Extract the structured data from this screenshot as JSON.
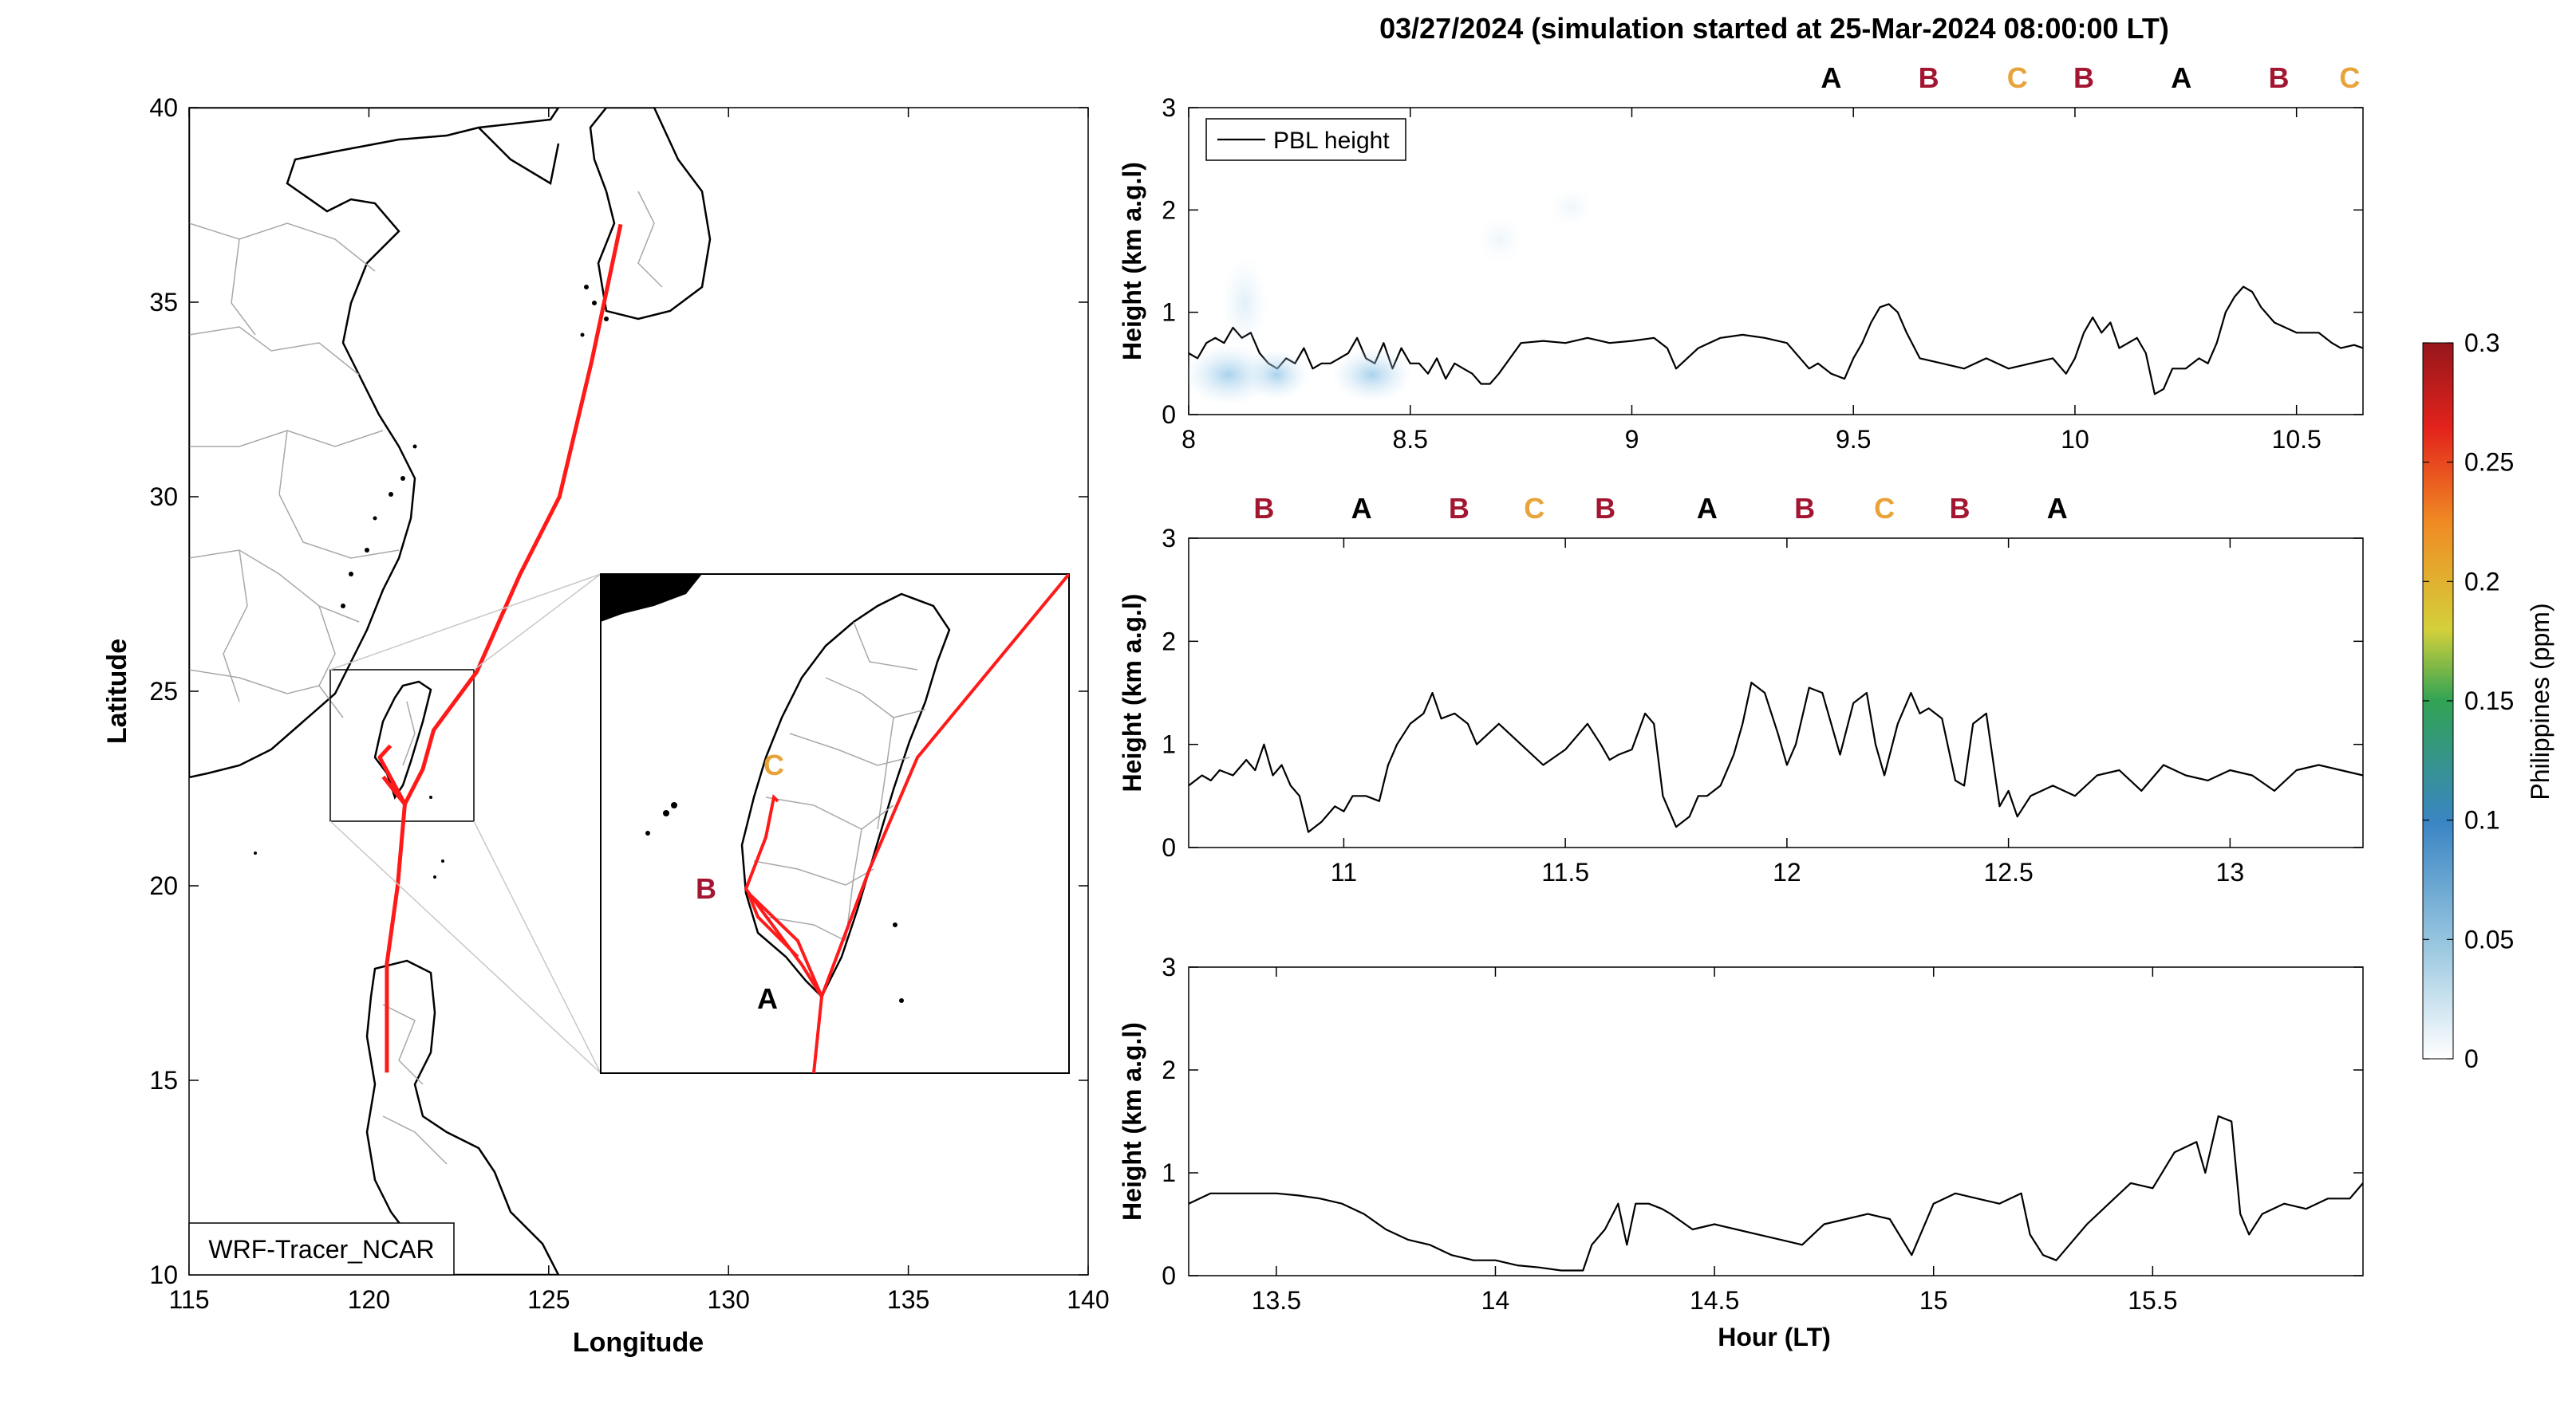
{
  "figure_title": "03/27/2024 (simulation started at 25-Mar-2024 08:00:00 LT)",
  "map": {
    "xlabel": "Longitude",
    "ylabel": "Latitude",
    "xticks": [
      "115",
      "120",
      "125",
      "130",
      "135",
      "140"
    ],
    "yticks": [
      "10",
      "15",
      "20",
      "25",
      "30",
      "35",
      "40"
    ],
    "model_label": "WRF-Tracer_NCAR",
    "inset_labels": [
      {
        "text": "C",
        "color": "#e8a33a"
      },
      {
        "text": "B",
        "color": "#a31631"
      },
      {
        "text": "A",
        "color": "#000000"
      }
    ]
  },
  "colorbar": {
    "label": "Philippines (ppm)",
    "ticks": [
      "0",
      "0.05",
      "0.1",
      "0.15",
      "0.2",
      "0.25",
      "0.3"
    ]
  },
  "panel_ylabel": "Height (km a.g.l)",
  "panel_xlabel": "Hour (LT)",
  "legend_label": "PBL height",
  "letter_colors": {
    "A": "#000000",
    "B": "#a31631",
    "C": "#e8a33a"
  },
  "chart_data": [
    {
      "type": "line",
      "xlim": [
        8,
        10.65
      ],
      "ylim": [
        0,
        3
      ],
      "xticks": [
        "8",
        "8.5",
        "9",
        "9.5",
        "10",
        "10.5"
      ],
      "yticks": [
        "0",
        "1",
        "2",
        "3"
      ],
      "top_letters": [
        {
          "x": 9.45,
          "letter": "A"
        },
        {
          "x": 9.67,
          "letter": "B"
        },
        {
          "x": 9.87,
          "letter": "C"
        },
        {
          "x": 10.02,
          "letter": "B"
        },
        {
          "x": 10.24,
          "letter": "A"
        },
        {
          "x": 10.46,
          "letter": "B"
        },
        {
          "x": 10.62,
          "letter": "C"
        }
      ],
      "series": [
        {
          "name": "PBL height",
          "x": [
            8.0,
            8.02,
            8.04,
            8.06,
            8.08,
            8.1,
            8.12,
            8.14,
            8.16,
            8.18,
            8.2,
            8.22,
            8.24,
            8.26,
            8.28,
            8.3,
            8.32,
            8.34,
            8.36,
            8.38,
            8.4,
            8.42,
            8.44,
            8.46,
            8.48,
            8.5,
            8.52,
            8.54,
            8.56,
            8.58,
            8.6,
            8.62,
            8.64,
            8.66,
            8.68,
            8.7,
            8.75,
            8.8,
            8.85,
            8.9,
            8.95,
            9.0,
            9.05,
            9.08,
            9.1,
            9.15,
            9.2,
            9.25,
            9.3,
            9.35,
            9.4,
            9.42,
            9.45,
            9.48,
            9.5,
            9.52,
            9.54,
            9.56,
            9.58,
            9.6,
            9.62,
            9.65,
            9.7,
            9.75,
            9.8,
            9.85,
            9.9,
            9.95,
            9.98,
            10.0,
            10.02,
            10.04,
            10.06,
            10.08,
            10.1,
            10.12,
            10.14,
            10.16,
            10.18,
            10.2,
            10.22,
            10.25,
            10.28,
            10.3,
            10.32,
            10.34,
            10.36,
            10.38,
            10.4,
            10.42,
            10.45,
            10.5,
            10.55,
            10.58,
            10.6,
            10.63,
            10.65
          ],
          "y": [
            0.6,
            0.55,
            0.7,
            0.75,
            0.7,
            0.85,
            0.75,
            0.8,
            0.6,
            0.5,
            0.45,
            0.55,
            0.5,
            0.65,
            0.45,
            0.5,
            0.5,
            0.55,
            0.6,
            0.75,
            0.55,
            0.5,
            0.7,
            0.45,
            0.65,
            0.5,
            0.5,
            0.4,
            0.55,
            0.35,
            0.5,
            0.45,
            0.4,
            0.3,
            0.3,
            0.4,
            0.7,
            0.72,
            0.7,
            0.75,
            0.7,
            0.72,
            0.75,
            0.65,
            0.45,
            0.65,
            0.75,
            0.78,
            0.75,
            0.7,
            0.45,
            0.5,
            0.4,
            0.35,
            0.55,
            0.7,
            0.9,
            1.05,
            1.08,
            1.0,
            0.8,
            0.55,
            0.5,
            0.45,
            0.55,
            0.45,
            0.5,
            0.55,
            0.4,
            0.55,
            0.8,
            0.95,
            0.8,
            0.9,
            0.65,
            0.7,
            0.75,
            0.6,
            0.2,
            0.25,
            0.45,
            0.45,
            0.55,
            0.5,
            0.7,
            1.0,
            1.15,
            1.25,
            1.2,
            1.05,
            0.9,
            0.8,
            0.8,
            0.7,
            0.65,
            0.68,
            0.65
          ]
        }
      ]
    },
    {
      "type": "line",
      "xlim": [
        10.65,
        13.3
      ],
      "ylim": [
        0,
        3
      ],
      "xticks": [
        "11",
        "11.5",
        "12",
        "12.5",
        "13"
      ],
      "yticks": [
        "0",
        "1",
        "2",
        "3"
      ],
      "top_letters": [
        {
          "x": 10.82,
          "letter": "B"
        },
        {
          "x": 11.04,
          "letter": "A"
        },
        {
          "x": 11.26,
          "letter": "B"
        },
        {
          "x": 11.43,
          "letter": "C"
        },
        {
          "x": 11.59,
          "letter": "B"
        },
        {
          "x": 11.82,
          "letter": "A"
        },
        {
          "x": 12.04,
          "letter": "B"
        },
        {
          "x": 12.22,
          "letter": "C"
        },
        {
          "x": 12.39,
          "letter": "B"
        },
        {
          "x": 12.61,
          "letter": "A"
        }
      ],
      "series": [
        {
          "name": "PBL height",
          "x": [
            10.65,
            10.68,
            10.7,
            10.72,
            10.75,
            10.78,
            10.8,
            10.82,
            10.84,
            10.86,
            10.88,
            10.9,
            10.92,
            10.95,
            10.98,
            11.0,
            11.02,
            11.05,
            11.08,
            11.1,
            11.12,
            11.15,
            11.18,
            11.2,
            11.22,
            11.25,
            11.28,
            11.3,
            11.35,
            11.4,
            11.45,
            11.5,
            11.55,
            11.58,
            11.6,
            11.62,
            11.65,
            11.68,
            11.7,
            11.72,
            11.75,
            11.78,
            11.8,
            11.82,
            11.85,
            11.88,
            11.9,
            11.92,
            11.95,
            11.98,
            12.0,
            12.02,
            12.05,
            12.08,
            12.1,
            12.12,
            12.15,
            12.18,
            12.2,
            12.22,
            12.25,
            12.28,
            12.3,
            12.32,
            12.35,
            12.38,
            12.4,
            12.42,
            12.45,
            12.48,
            12.5,
            12.52,
            12.55,
            12.6,
            12.65,
            12.7,
            12.75,
            12.8,
            12.85,
            12.9,
            12.95,
            13.0,
            13.05,
            13.1,
            13.15,
            13.2,
            13.25,
            13.3
          ],
          "y": [
            0.6,
            0.7,
            0.65,
            0.75,
            0.7,
            0.85,
            0.75,
            1.0,
            0.7,
            0.8,
            0.6,
            0.5,
            0.15,
            0.25,
            0.4,
            0.35,
            0.5,
            0.5,
            0.45,
            0.8,
            1.0,
            1.2,
            1.3,
            1.5,
            1.25,
            1.3,
            1.2,
            1.0,
            1.2,
            1.0,
            0.8,
            0.95,
            1.2,
            1.0,
            0.85,
            0.9,
            0.95,
            1.3,
            1.2,
            0.5,
            0.2,
            0.3,
            0.5,
            0.5,
            0.6,
            0.9,
            1.2,
            1.6,
            1.5,
            1.1,
            0.8,
            1.0,
            1.55,
            1.5,
            1.2,
            0.9,
            1.4,
            1.5,
            1.0,
            0.7,
            1.2,
            1.5,
            1.3,
            1.35,
            1.25,
            0.65,
            0.6,
            1.2,
            1.3,
            0.4,
            0.55,
            0.3,
            0.5,
            0.6,
            0.5,
            0.7,
            0.75,
            0.55,
            0.8,
            0.7,
            0.65,
            0.75,
            0.7,
            0.55,
            0.75,
            0.8,
            0.75,
            0.7
          ]
        }
      ]
    },
    {
      "type": "line",
      "xlim": [
        13.3,
        15.98
      ],
      "ylim": [
        0,
        3
      ],
      "xticks": [
        "13.5",
        "14",
        "14.5",
        "15",
        "15.5"
      ],
      "yticks": [
        "0",
        "1",
        "2",
        "3"
      ],
      "top_letters": [],
      "series": [
        {
          "name": "PBL height",
          "x": [
            13.3,
            13.35,
            13.4,
            13.45,
            13.5,
            13.55,
            13.6,
            13.65,
            13.7,
            13.75,
            13.8,
            13.85,
            13.9,
            13.95,
            14.0,
            14.05,
            14.1,
            14.15,
            14.2,
            14.22,
            14.25,
            14.28,
            14.3,
            14.32,
            14.35,
            14.38,
            14.4,
            14.45,
            14.5,
            14.55,
            14.6,
            14.65,
            14.7,
            14.75,
            14.8,
            14.85,
            14.9,
            14.95,
            15.0,
            15.05,
            15.1,
            15.15,
            15.2,
            15.22,
            15.25,
            15.28,
            15.3,
            15.35,
            15.4,
            15.45,
            15.5,
            15.55,
            15.6,
            15.62,
            15.65,
            15.68,
            15.7,
            15.72,
            15.75,
            15.8,
            15.85,
            15.9,
            15.95,
            15.98
          ],
          "y": [
            0.7,
            0.8,
            0.8,
            0.8,
            0.8,
            0.78,
            0.75,
            0.7,
            0.6,
            0.45,
            0.35,
            0.3,
            0.2,
            0.15,
            0.15,
            0.1,
            0.08,
            0.05,
            0.05,
            0.3,
            0.45,
            0.7,
            0.3,
            0.7,
            0.7,
            0.65,
            0.6,
            0.45,
            0.5,
            0.45,
            0.4,
            0.35,
            0.3,
            0.5,
            0.55,
            0.6,
            0.55,
            0.2,
            0.7,
            0.8,
            0.75,
            0.7,
            0.8,
            0.4,
            0.2,
            0.15,
            0.25,
            0.5,
            0.7,
            0.9,
            0.85,
            1.2,
            1.3,
            1.0,
            1.55,
            1.5,
            0.6,
            0.4,
            0.6,
            0.7,
            0.65,
            0.75,
            0.75,
            0.9
          ]
        }
      ]
    }
  ],
  "track": {
    "name": "trajectory",
    "color": "#ff1a1a",
    "lonlat": [
      [
        120.5,
        15.2
      ],
      [
        120.5,
        18.0
      ],
      [
        120.8,
        20.0
      ],
      [
        121.0,
        22.1
      ],
      [
        121.5,
        23.0
      ],
      [
        121.8,
        24.0
      ],
      [
        123.0,
        25.5
      ],
      [
        124.2,
        28.0
      ],
      [
        125.3,
        30.0
      ],
      [
        126.2,
        33.5
      ],
      [
        127.0,
        37.0
      ]
    ]
  }
}
